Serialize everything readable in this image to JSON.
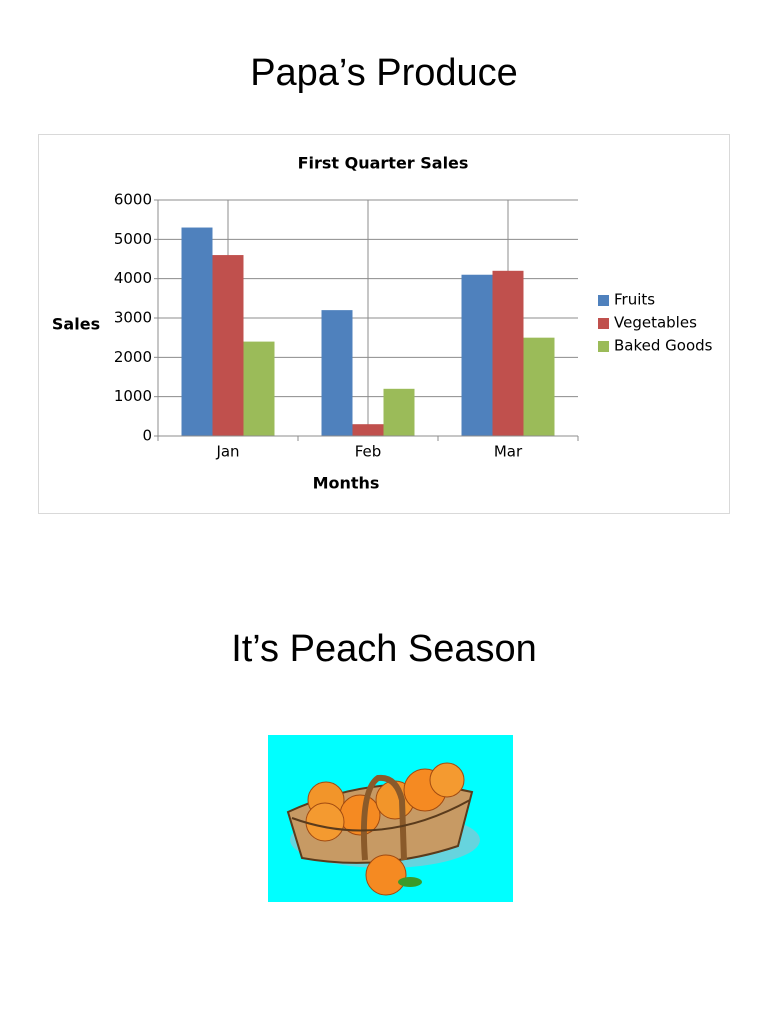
{
  "page_title": "Papa’s Produce",
  "chart_data": {
    "type": "bar",
    "title": "First Quarter Sales",
    "x_label": "Months",
    "y_label": "Sales",
    "categories": [
      "Jan",
      "Feb",
      "Mar"
    ],
    "series": [
      {
        "name": "Fruits",
        "color": "#4f81bd",
        "values": [
          5300,
          3200,
          4100
        ]
      },
      {
        "name": "Vegetables",
        "color": "#c0504d",
        "values": [
          4600,
          300,
          4200
        ]
      },
      {
        "name": "Baked Goods",
        "color": "#9bbb59",
        "values": [
          2400,
          1200,
          2500
        ]
      }
    ],
    "ylim": [
      0,
      6000
    ],
    "yticks": [
      0,
      1000,
      2000,
      3000,
      4000,
      5000,
      6000
    ],
    "grid": true,
    "legend": "right"
  },
  "section_title": "It’s Peach Season"
}
